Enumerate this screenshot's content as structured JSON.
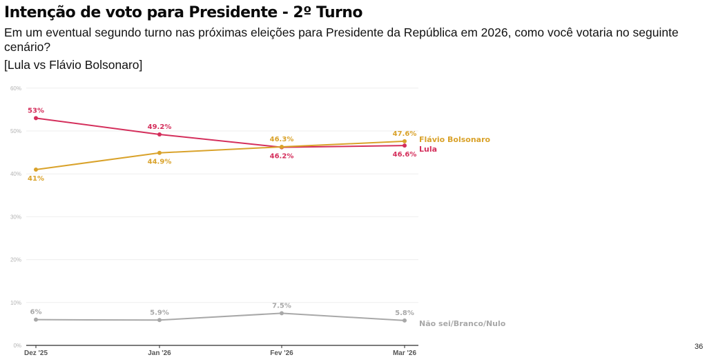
{
  "header": {
    "title": "Intenção de voto para Presidente - 2º Turno",
    "subtitle": "Em um eventual segundo turno nas próximas eleições para Presidente da República em 2026, como você votaria no seguinte cenário?",
    "scenario": "[Lula vs Flávio Bolsonaro]"
  },
  "page_number": "36",
  "chart_data": {
    "type": "line",
    "categories": [
      "Dez '25",
      "Jan '26",
      "Fev '26",
      "Mar '26"
    ],
    "y_ticks": [
      "0%",
      "10%",
      "20%",
      "30%",
      "40%",
      "50%",
      "60%"
    ],
    "ylim": [
      0,
      60
    ],
    "grid": true,
    "series": [
      {
        "name": "Lula",
        "values": [
          53,
          49.2,
          46.2,
          46.6
        ],
        "labels": [
          "53%",
          "49.2%",
          "46.2%",
          "46.6%"
        ],
        "color": "#d42e5b"
      },
      {
        "name": "Flávio Bolsonaro",
        "values": [
          41,
          44.9,
          46.3,
          47.6
        ],
        "labels": [
          "41%",
          "44.9%",
          "46.3%",
          "47.6%"
        ],
        "color": "#d9a22a"
      },
      {
        "name": "Não sei/Branco/Nulo",
        "values": [
          6,
          5.9,
          7.5,
          5.8
        ],
        "labels": [
          "6%",
          "5.9%",
          "7.5%",
          "5.8%"
        ],
        "color": "#a8a8a8"
      }
    ]
  }
}
